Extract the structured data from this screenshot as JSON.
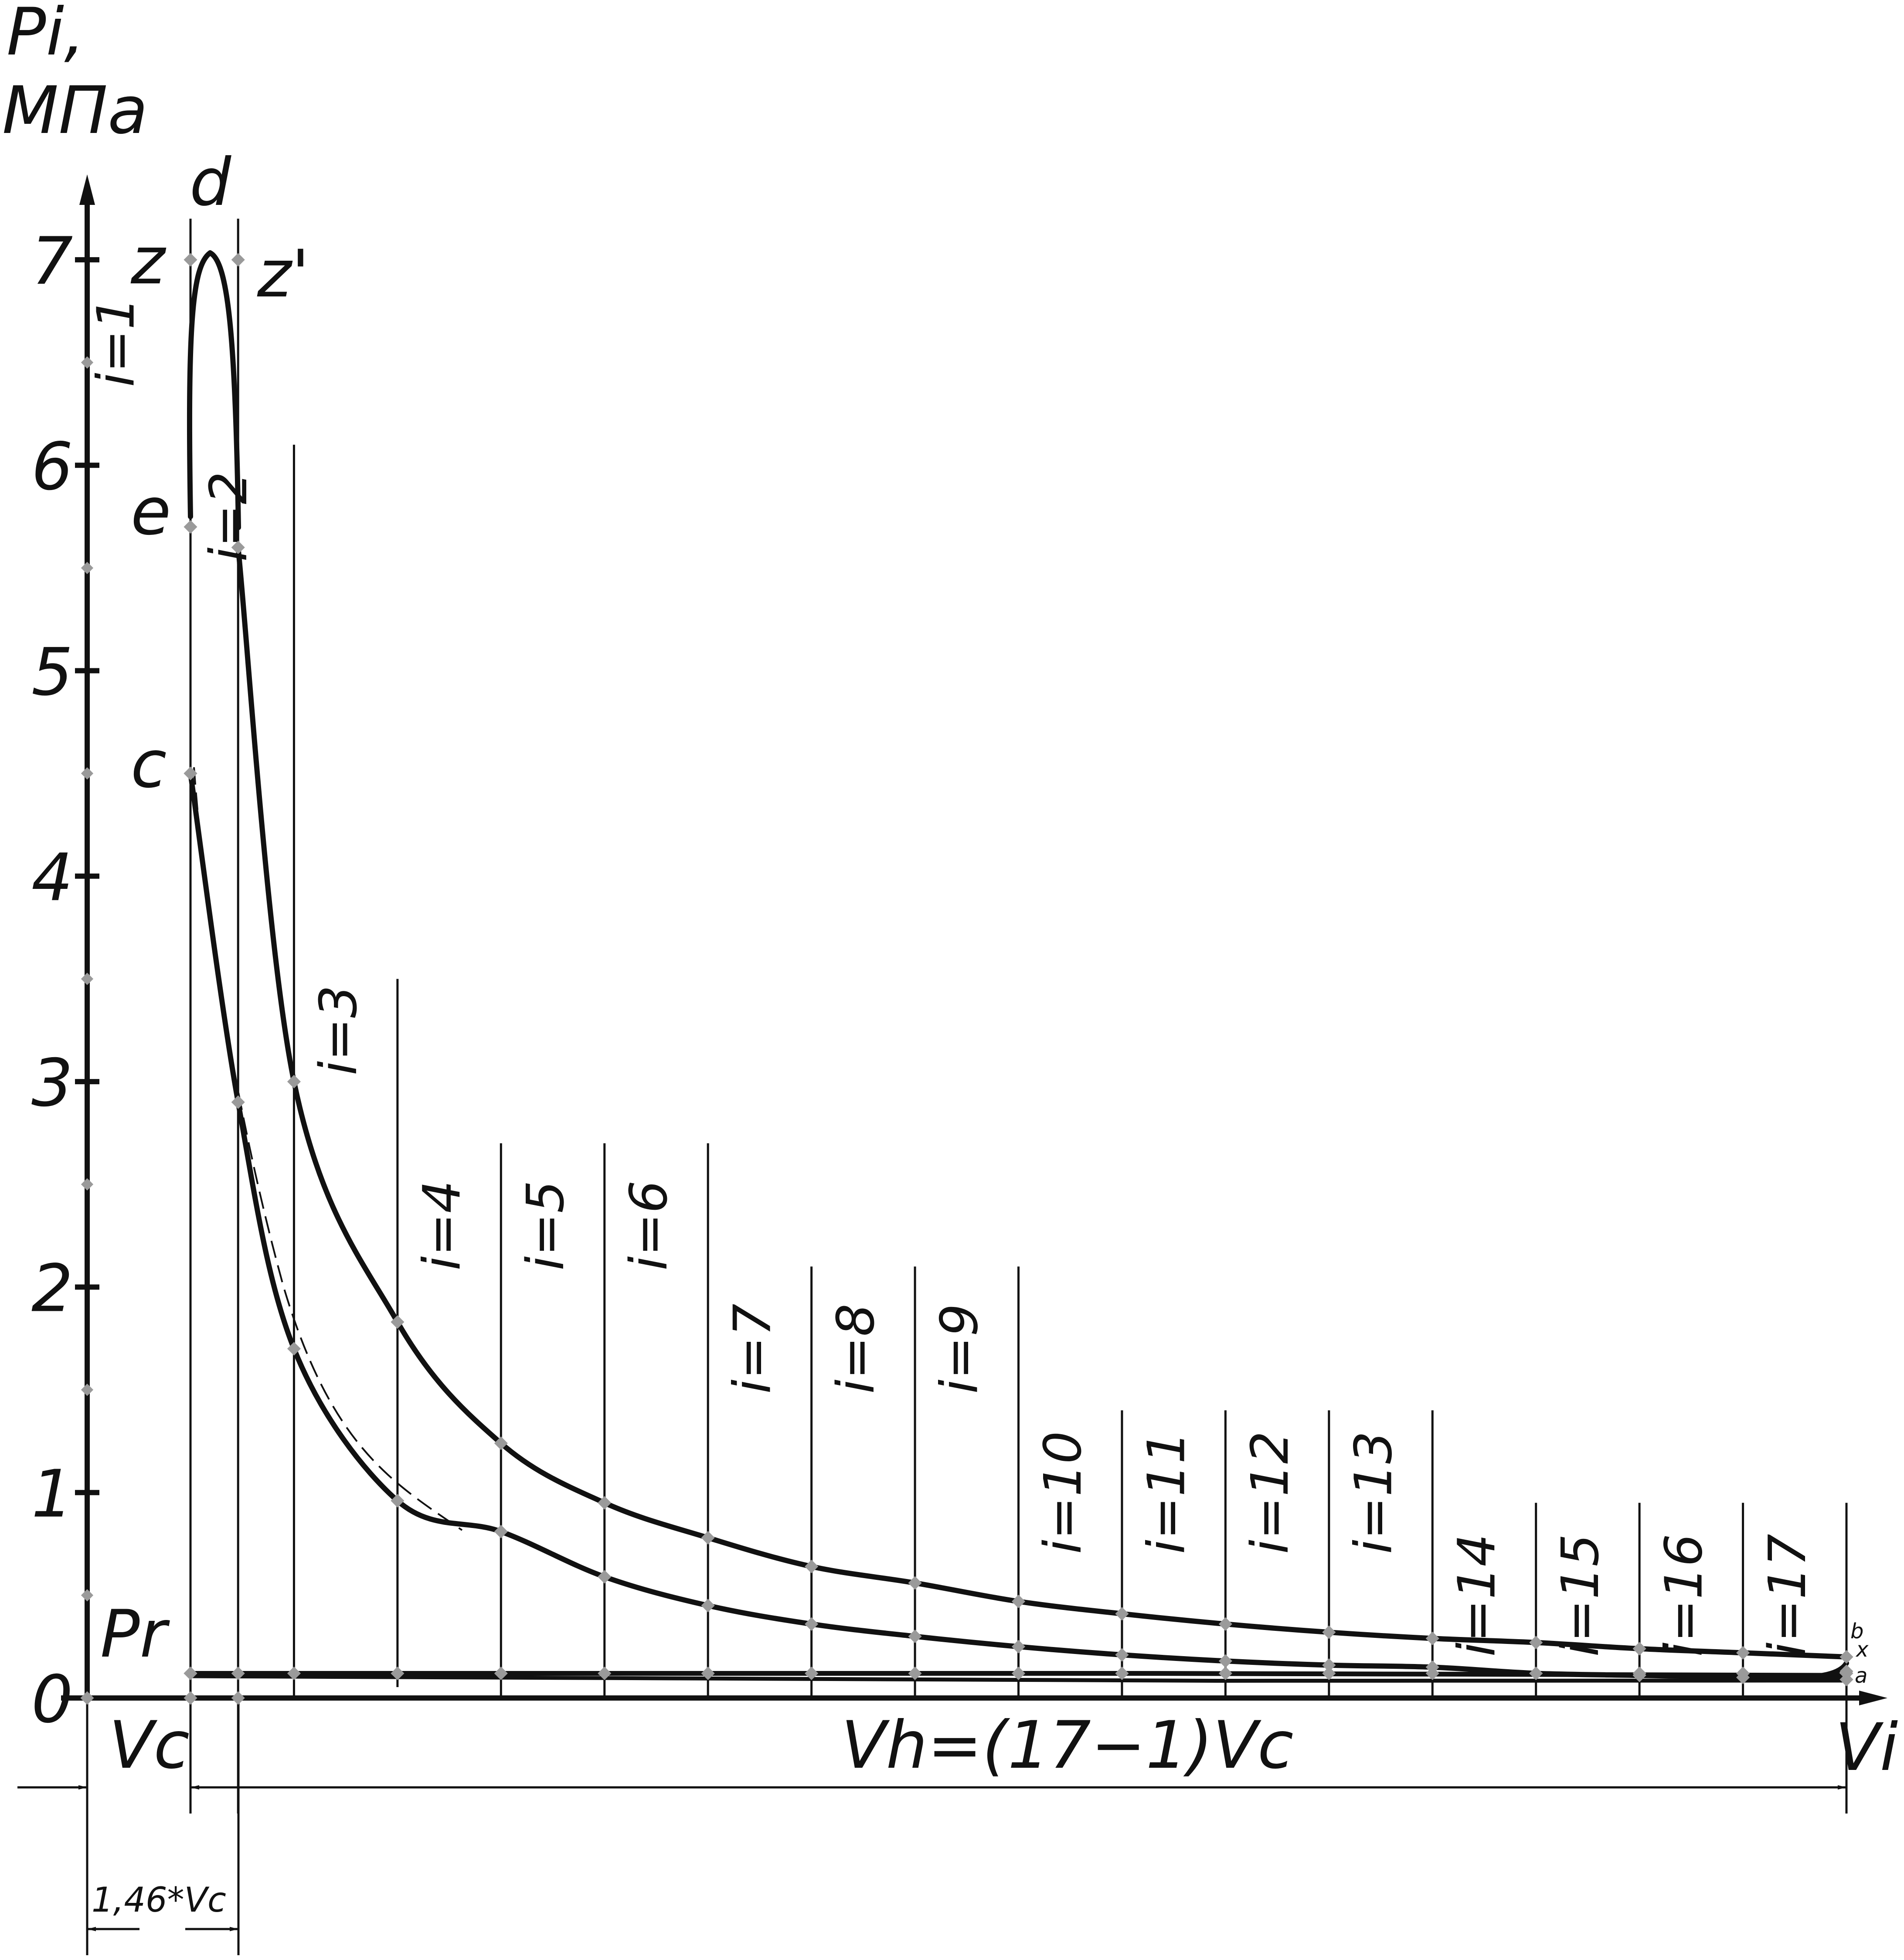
{
  "axes": {
    "y_label_line1": "Pi,",
    "y_label_line2": "МПа",
    "x_label": "Vi",
    "y_ticks": [
      "0",
      "1",
      "2",
      "3",
      "4",
      "5",
      "6",
      "7"
    ],
    "vc_label": "Vc",
    "vh_label": "Vh=(17−1)Vc",
    "pr_label": "Pr",
    "dim_label": "1,46*Vc"
  },
  "point_labels": {
    "d": "d",
    "z": "z",
    "z_prime": "z'",
    "e": "e",
    "c": "c",
    "b": "b",
    "x": "x",
    "a": "a"
  },
  "sections": [
    "i=1",
    "i=2",
    "i=3",
    "i=4",
    "i=5",
    "i=6",
    "i=7",
    "i=8",
    "i=9",
    "i=10",
    "i=11",
    "i=12",
    "i=13",
    "i=14",
    "i=15",
    "i=16",
    "i=17"
  ],
  "chart_data": {
    "type": "line",
    "xlabel": "Vi",
    "ylabel": "Pi, МПа",
    "ylim": [
      0,
      7
    ],
    "y_ticks": [
      0,
      1,
      2,
      3,
      4,
      5,
      6,
      7
    ],
    "section_positions_Vc": [
      1,
      1.46,
      2,
      3,
      4,
      5,
      6,
      7,
      8,
      9,
      10,
      11,
      12,
      13,
      14,
      15,
      16,
      17
    ],
    "series": [
      {
        "points": [
          [
            1.46,
            5.6
          ],
          [
            2,
            3.0
          ],
          [
            3,
            1.83
          ],
          [
            4,
            1.24
          ],
          [
            5,
            0.95
          ],
          [
            6,
            0.78
          ],
          [
            7,
            0.64
          ],
          [
            8,
            0.56
          ],
          [
            9,
            0.47
          ],
          [
            10,
            0.41
          ],
          [
            11,
            0.36
          ],
          [
            12,
            0.32
          ],
          [
            13,
            0.29
          ],
          [
            14,
            0.27
          ],
          [
            15,
            0.24
          ],
          [
            16,
            0.22
          ],
          [
            17,
            0.2
          ]
        ]
      },
      {
        "points": [
          [
            17,
            0.09
          ],
          [
            16,
            0.1
          ],
          [
            15,
            0.11
          ],
          [
            14,
            0.12
          ],
          [
            13,
            0.15
          ],
          [
            12,
            0.16
          ],
          [
            11,
            0.18
          ],
          [
            10,
            0.21
          ],
          [
            9,
            0.25
          ],
          [
            8,
            0.3
          ],
          [
            7,
            0.36
          ],
          [
            6,
            0.45
          ],
          [
            5,
            0.59
          ],
          [
            4,
            0.81
          ],
          [
            3,
            0.96
          ],
          [
            2,
            1.7
          ],
          [
            1.46,
            2.9
          ],
          [
            1,
            4.5
          ]
        ]
      },
      {
        "points": [
          [
            1,
            0.12
          ],
          [
            5,
            0.12
          ],
          [
            10,
            0.12
          ],
          [
            17,
            0.11
          ]
        ]
      }
    ],
    "key_points": [
      {
        "label": "z",
        "x": 1,
        "y": 7.0
      },
      {
        "label": "z'",
        "x": 1.46,
        "y": 7.0
      },
      {
        "label": "e",
        "x": 1,
        "y": 5.7
      },
      {
        "label": "c",
        "x": 1,
        "y": 4.5
      },
      {
        "label": "Pr",
        "x": 1,
        "y": 0.12
      },
      {
        "label": "b",
        "x": 17,
        "y": 0.2
      },
      {
        "label": "x",
        "x": 17,
        "y": 0.13
      },
      {
        "label": "a",
        "x": 17,
        "y": 0.09
      }
    ]
  }
}
